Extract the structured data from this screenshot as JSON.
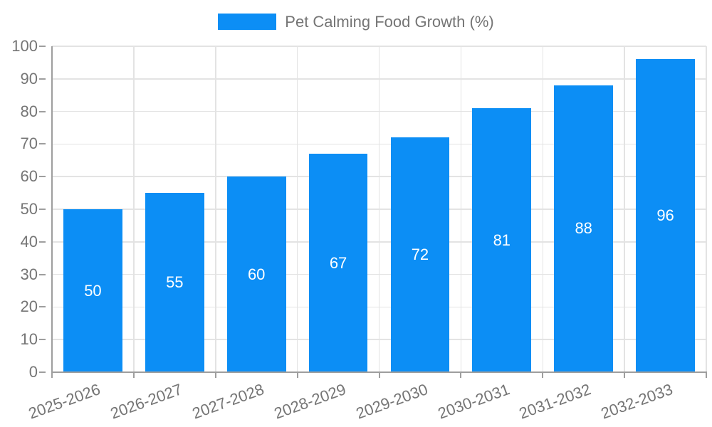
{
  "chart_data": {
    "type": "bar",
    "title": "",
    "legend": "Pet Calming Food Growth (%)",
    "legend_position": "top-center",
    "categories": [
      "2025-2026",
      "2026-2027",
      "2027-2028",
      "2028-2029",
      "2029-2030",
      "2030-2031",
      "2031-2032",
      "2032-2033"
    ],
    "values": [
      50,
      55,
      60,
      67,
      72,
      81,
      88,
      96
    ],
    "xlabel": "",
    "ylabel": "",
    "ylim": [
      0,
      100
    ],
    "yticks": [
      0,
      10,
      20,
      30,
      40,
      50,
      60,
      70,
      80,
      90,
      100
    ],
    "grid": true,
    "value_labels_position": "inside-center",
    "x_label_rotation_deg": -20
  },
  "colors": {
    "bar": "#0C8EF5",
    "grid": "#e3e3e3",
    "axis": "#9e9e9e",
    "text": "#757575",
    "value_label": "#ffffff"
  }
}
